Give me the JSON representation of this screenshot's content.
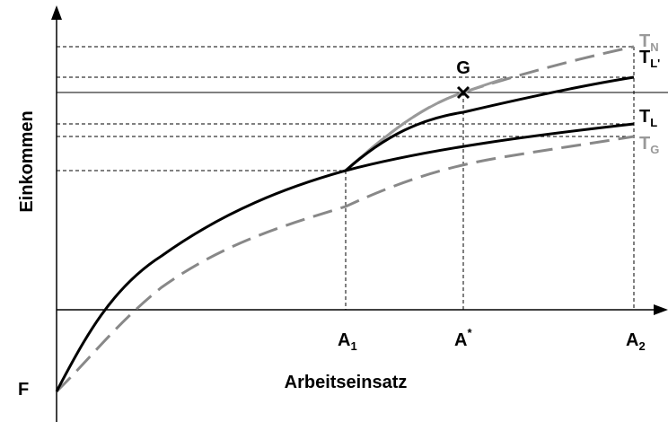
{
  "axes": {
    "y_label": "Einkommen",
    "x_label": "Arbeitseinsatz",
    "origin_label": "F"
  },
  "x_points": [
    {
      "base": "A",
      "sub": "1"
    },
    {
      "base": "A",
      "sup": "*"
    },
    {
      "base": "A",
      "sub": "2"
    }
  ],
  "point_label": "G",
  "curves": [
    {
      "base": "T",
      "sub": "N"
    },
    {
      "base": "T",
      "sub": "L'"
    },
    {
      "base": "T",
      "sub": "L"
    },
    {
      "base": "T",
      "sub": "G"
    }
  ]
}
